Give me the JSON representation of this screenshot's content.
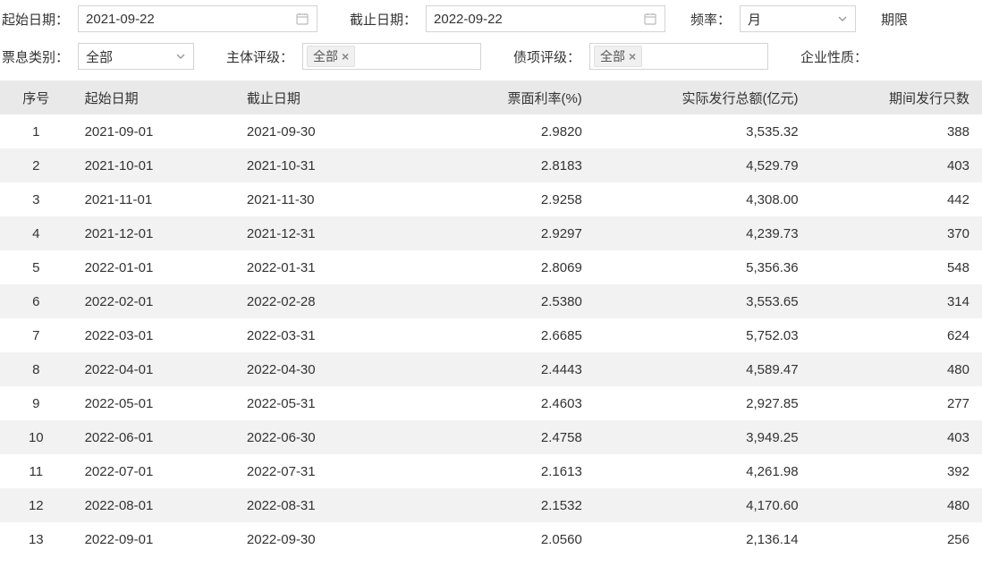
{
  "filters": {
    "startDateLabel": "起始日期：",
    "startDate": "2021-09-22",
    "endDateLabel": "截止日期：",
    "endDate": "2022-09-22",
    "freqLabel": "频率：",
    "freqValue": "月",
    "termLabel": "期限",
    "couponTypeLabel": "票息类别：",
    "couponTypeValue": "全部",
    "issuerRatingLabel": "主体评级：",
    "issuerRatingTag": "全部",
    "bondRatingLabel": "债项评级：",
    "bondRatingTag": "全部",
    "enterpriseNatureLabel": "企业性质："
  },
  "table": {
    "columns": [
      "序号",
      "起始日期",
      "截止日期",
      "票面利率(%)",
      "实际发行总额(亿元)",
      "期间发行只数"
    ],
    "rows": [
      [
        "1",
        "2021-09-01",
        "2021-09-30",
        "2.9820",
        "3,535.32",
        "388"
      ],
      [
        "2",
        "2021-10-01",
        "2021-10-31",
        "2.8183",
        "4,529.79",
        "403"
      ],
      [
        "3",
        "2021-11-01",
        "2021-11-30",
        "2.9258",
        "4,308.00",
        "442"
      ],
      [
        "4",
        "2021-12-01",
        "2021-12-31",
        "2.9297",
        "4,239.73",
        "370"
      ],
      [
        "5",
        "2022-01-01",
        "2022-01-31",
        "2.8069",
        "5,356.36",
        "548"
      ],
      [
        "6",
        "2022-02-01",
        "2022-02-28",
        "2.5380",
        "3,553.65",
        "314"
      ],
      [
        "7",
        "2022-03-01",
        "2022-03-31",
        "2.6685",
        "5,752.03",
        "624"
      ],
      [
        "8",
        "2022-04-01",
        "2022-04-30",
        "2.4443",
        "4,589.47",
        "480"
      ],
      [
        "9",
        "2022-05-01",
        "2022-05-31",
        "2.4603",
        "2,927.85",
        "277"
      ],
      [
        "10",
        "2022-06-01",
        "2022-06-30",
        "2.4758",
        "3,949.25",
        "403"
      ],
      [
        "11",
        "2022-07-01",
        "2022-07-31",
        "2.1613",
        "4,261.98",
        "392"
      ],
      [
        "12",
        "2022-08-01",
        "2022-08-31",
        "2.1532",
        "4,170.60",
        "480"
      ],
      [
        "13",
        "2022-09-01",
        "2022-09-30",
        "2.0560",
        "2,136.14",
        "256"
      ]
    ]
  },
  "style": {
    "headerBg": "#e9e9e9",
    "rowAltBg": "#f2f2f2",
    "borderColor": "#d4d4d4",
    "textColor": "#333333",
    "iconColor": "#999999"
  }
}
